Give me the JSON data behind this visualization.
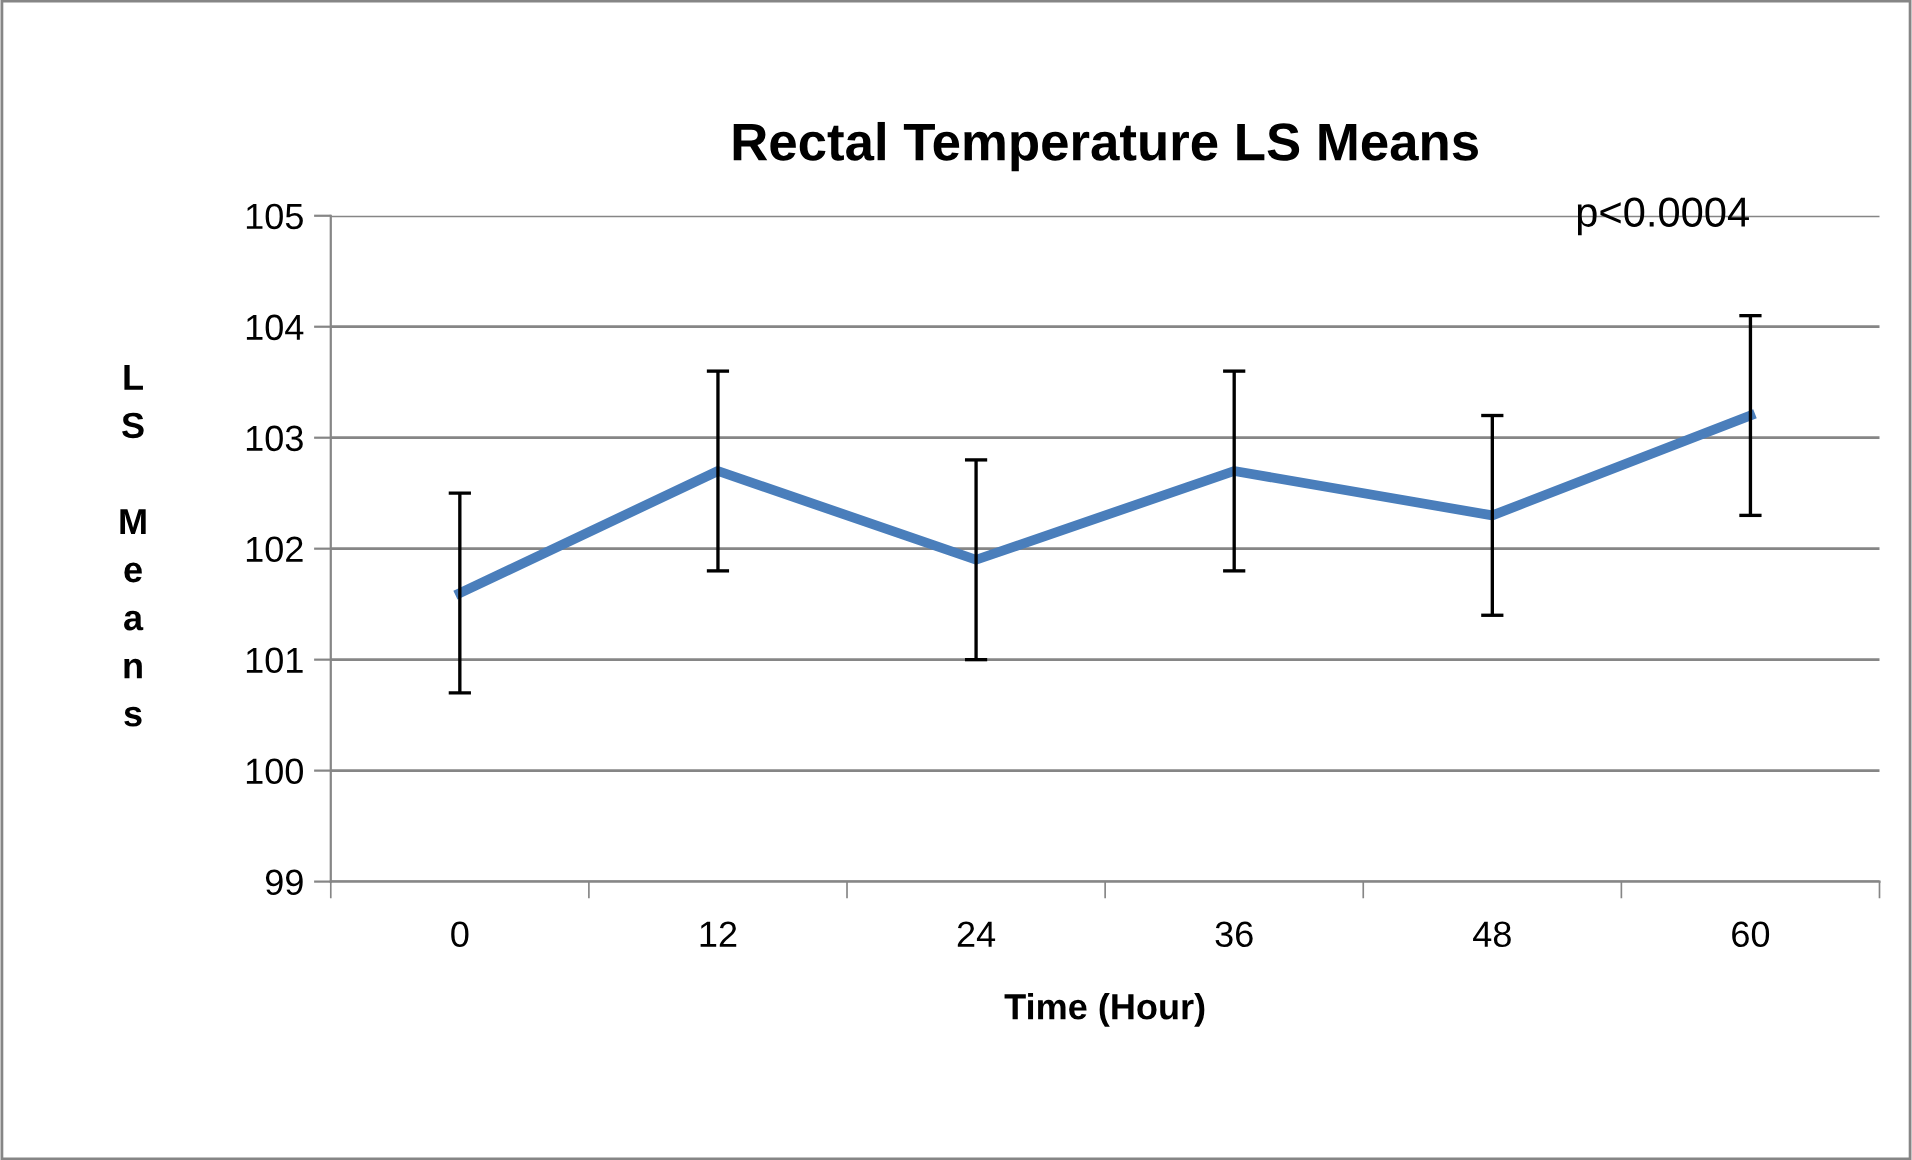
{
  "chart_data": {
    "type": "line",
    "title": "Rectal Temperature LS Means",
    "xlabel": "Time (Hour)",
    "ylabel": "LS Means",
    "categories": [
      "0",
      "12",
      "24",
      "36",
      "48",
      "60"
    ],
    "series": [
      {
        "color": "#4a7ebb",
        "values": [
          101.6,
          102.7,
          101.9,
          102.7,
          102.3,
          103.2
        ],
        "errors": [
          0.9,
          0.9,
          0.9,
          0.9,
          0.9,
          0.9
        ]
      }
    ],
    "ylim": [
      99,
      105
    ],
    "yticks": [
      99,
      100,
      101,
      102,
      103,
      104,
      105
    ],
    "grid": "y",
    "legend": false,
    "marker": "none",
    "line_style": "solid",
    "annotations": [
      "p<0.0004"
    ]
  }
}
